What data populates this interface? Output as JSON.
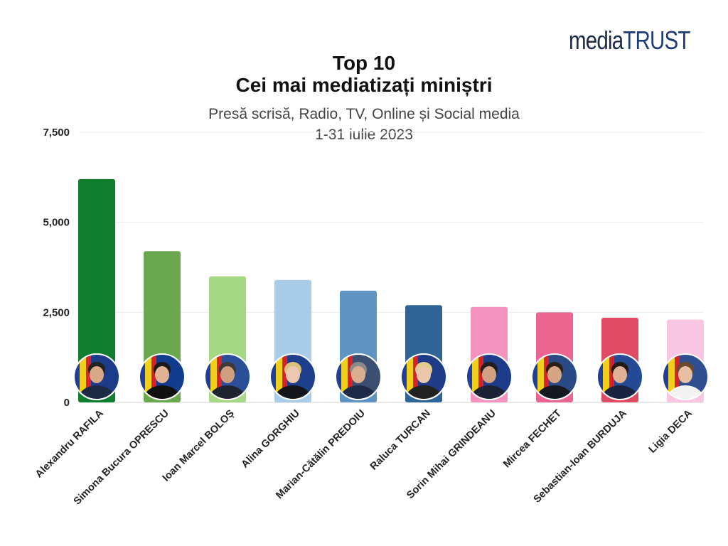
{
  "logo": {
    "media": "media",
    "trust": "TRUST"
  },
  "chart_data": {
    "type": "bar",
    "title": "Top 10",
    "title_line2": "Cei mai mediatizați miniștri",
    "subtitle": "Presă scrisă, Radio, TV, Online și Social media",
    "subtitle_line2": "1-31 iulie 2023",
    "xlabel": "",
    "ylabel": "",
    "ylim": [
      0,
      7500
    ],
    "yticks": [
      0,
      2500,
      5000,
      7500
    ],
    "ytick_labels": [
      "0",
      "2,500",
      "5,000",
      "7,500"
    ],
    "grid": true,
    "categories": [
      "Alexandru RAFILA",
      "Simona Bucura OPRESCU",
      "Ioan Marcel BOLOȘ",
      "Alina GORGHIU",
      "Marian-Cătălin PREDOIU",
      "Raluca TURCAN",
      "Sorin Mihai GRINDEANU",
      "Mircea FECHET",
      "Sebastian-Ioan BURDUJA",
      "Ligia DECA"
    ],
    "values": [
      6200,
      4200,
      3500,
      3400,
      3100,
      2700,
      2650,
      2500,
      2350,
      2300
    ],
    "colors": [
      "#0f7e2e",
      "#6aa84f",
      "#a5d882",
      "#a9cde9",
      "#5f93c2",
      "#2f6496",
      "#f493bd",
      "#ec6490",
      "#e04a63",
      "#f8c6e3"
    ]
  }
}
